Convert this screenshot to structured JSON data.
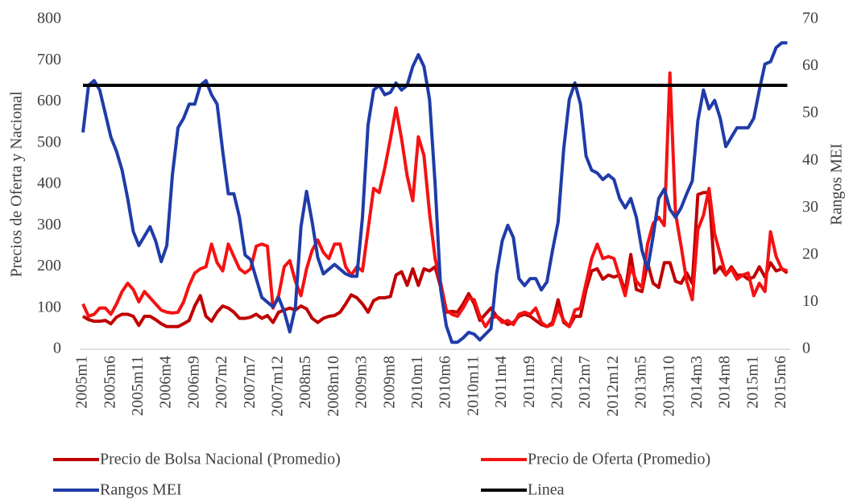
{
  "chart_data": {
    "type": "line",
    "ylabel": "Precios de Oferta y Nacional",
    "y2label": "Rangos MEI",
    "ylim": [
      0,
      800
    ],
    "yticks": [
      0,
      100,
      200,
      300,
      400,
      500,
      600,
      700,
      800
    ],
    "y2lim": [
      0,
      70
    ],
    "y2ticks": [
      0,
      10,
      20,
      30,
      40,
      50,
      60,
      70
    ],
    "legend": "bottom",
    "categories": [
      "2005m1",
      null,
      null,
      null,
      null,
      "2005m6",
      null,
      null,
      null,
      null,
      "2005m11",
      null,
      null,
      null,
      null,
      "2006m4",
      null,
      null,
      null,
      null,
      "2006m9",
      null,
      null,
      null,
      null,
      "2007m2",
      null,
      null,
      null,
      null,
      "2007m7",
      null,
      null,
      null,
      null,
      "2007m12",
      null,
      null,
      null,
      null,
      "2008m5",
      null,
      null,
      null,
      null,
      "2008m10",
      null,
      null,
      null,
      null,
      "2009m3",
      null,
      null,
      null,
      null,
      "2009m8",
      null,
      null,
      null,
      null,
      "2010m1",
      null,
      null,
      null,
      null,
      "2010m6",
      null,
      null,
      null,
      null,
      "2010m11",
      null,
      null,
      null,
      null,
      "2011m4",
      null,
      null,
      null,
      null,
      "2011m9",
      null,
      null,
      null,
      null,
      "2012m2",
      null,
      null,
      null,
      null,
      "2012m7",
      null,
      null,
      null,
      null,
      "2012m12",
      null,
      null,
      null,
      null,
      "2013m5",
      null,
      null,
      null,
      null,
      "2013m10",
      null,
      null,
      null,
      null,
      "2014m3",
      null,
      null,
      null,
      null,
      "2014m8",
      null,
      null,
      null,
      null,
      "2015m1",
      null,
      null,
      null,
      null,
      "2015m6",
      null
    ],
    "series": [
      {
        "name": "Precio de Bolsa Nacional (Promedio)",
        "color": "#c00000",
        "values": [
          80,
          72,
          68,
          68,
          70,
          62,
          78,
          85,
          85,
          80,
          58,
          80,
          80,
          72,
          62,
          55,
          55,
          55,
          62,
          70,
          105,
          130,
          80,
          68,
          90,
          105,
          100,
          90,
          75,
          75,
          78,
          85,
          75,
          82,
          65,
          90,
          95,
          100,
          95,
          105,
          98,
          75,
          65,
          75,
          80,
          82,
          90,
          110,
          132,
          125,
          110,
          90,
          118,
          125,
          125,
          128,
          180,
          188,
          155,
          195,
          155,
          195,
          190,
          200,
          150,
          90,
          92,
          90,
          110,
          135,
          110,
          70,
          85,
          100,
          80,
          70,
          60,
          65,
          80,
          85,
          80,
          70,
          60,
          55,
          65,
          120,
          65,
          55,
          80,
          80,
          145,
          190,
          195,
          170,
          180,
          175,
          180,
          140,
          230,
          145,
          140,
          210,
          160,
          150,
          210,
          210,
          165,
          160,
          185,
          160,
          375,
          380,
          380,
          185,
          200,
          180,
          200,
          180,
          180,
          170,
          175,
          200,
          175,
          210,
          190,
          195,
          185
        ]
      },
      {
        "name": "Precio de Oferta (Promedio)",
        "color": "#f51212",
        "values": [
          110,
          80,
          85,
          100,
          100,
          85,
          110,
          140,
          160,
          145,
          115,
          140,
          125,
          110,
          95,
          90,
          88,
          90,
          115,
          155,
          185,
          195,
          200,
          255,
          210,
          190,
          255,
          225,
          195,
          185,
          195,
          250,
          255,
          250,
          100,
          130,
          200,
          215,
          165,
          130,
          195,
          240,
          265,
          235,
          220,
          255,
          255,
          200,
          180,
          200,
          190,
          290,
          390,
          380,
          440,
          510,
          585,
          510,
          420,
          360,
          515,
          470,
          330,
          220,
          160,
          95,
          85,
          80,
          100,
          125,
          120,
          80,
          55,
          75,
          80,
          65,
          70,
          60,
          85,
          90,
          85,
          100,
          65,
          55,
          60,
          100,
          70,
          55,
          95,
          100,
          160,
          220,
          255,
          220,
          225,
          220,
          175,
          130,
          200,
          165,
          150,
          255,
          305,
          320,
          300,
          670,
          330,
          250,
          165,
          120,
          290,
          325,
          390,
          280,
          230,
          180,
          195,
          170,
          180,
          185,
          130,
          160,
          140,
          285,
          225,
          195,
          190
        ]
      },
      {
        "name": "Rangos MEI",
        "color": "#1f3ca8",
        "axis": "y2",
        "values": [
          46,
          56,
          57,
          55,
          50,
          45,
          42,
          38,
          32,
          25,
          22,
          24,
          26,
          23,
          18.6,
          22,
          37,
          47,
          49,
          52,
          52,
          56,
          57,
          54,
          52,
          42,
          33,
          33,
          28,
          20,
          19,
          15,
          11,
          10,
          9,
          11,
          8,
          3.7,
          9,
          26,
          33.5,
          27,
          19.5,
          16,
          17,
          18,
          17,
          16,
          15.5,
          15.5,
          28,
          47.6,
          55,
          56,
          54,
          54.5,
          56.5,
          55,
          56,
          60,
          62.5,
          60,
          53,
          35,
          12.6,
          5,
          1.5,
          1.5,
          2.4,
          3.6,
          3.2,
          2,
          3.2,
          4.4,
          16,
          23,
          26.3,
          23.7,
          15,
          13.5,
          15,
          15,
          12.6,
          14.3,
          21,
          27,
          42.5,
          53,
          56.5,
          52,
          41,
          38,
          37.4,
          36,
          37,
          36,
          32,
          30,
          32,
          28,
          21,
          17,
          24,
          32,
          34,
          29.7,
          28,
          30,
          33,
          35.7,
          48.5,
          55,
          51,
          52.8,
          49,
          43,
          45,
          47,
          47,
          47,
          49,
          55,
          60.5,
          61,
          64,
          65,
          65
        ]
      },
      {
        "name": "Linea",
        "color": "#000000",
        "values": [
          640,
          640,
          640,
          640,
          640,
          640,
          640,
          640,
          640,
          640,
          640,
          640,
          640,
          640,
          640,
          640,
          640,
          640,
          640,
          640,
          640,
          640,
          640,
          640,
          640,
          640,
          640,
          640,
          640,
          640,
          640,
          640,
          640,
          640,
          640,
          640,
          640,
          640,
          640,
          640,
          640,
          640,
          640,
          640,
          640,
          640,
          640,
          640,
          640,
          640,
          640,
          640,
          640,
          640,
          640,
          640,
          640,
          640,
          640,
          640,
          640,
          640,
          640,
          640,
          640,
          640,
          640,
          640,
          640,
          640,
          640,
          640,
          640,
          640,
          640,
          640,
          640,
          640,
          640,
          640,
          640,
          640,
          640,
          640,
          640,
          640,
          640,
          640,
          640,
          640,
          640,
          640,
          640,
          640,
          640,
          640,
          640,
          640,
          640,
          640,
          640,
          640,
          640,
          640,
          640,
          640,
          640,
          640,
          640,
          640,
          640,
          640,
          640,
          640,
          640,
          640,
          640,
          640,
          640,
          640,
          640,
          640,
          640,
          640,
          640,
          640,
          640
        ]
      }
    ]
  }
}
